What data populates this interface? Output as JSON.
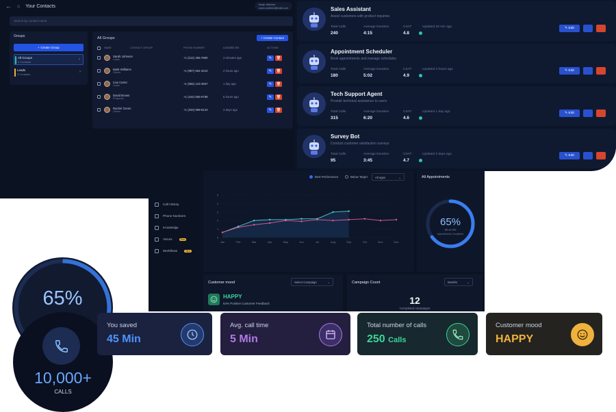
{
  "contacts": {
    "title": "Your Contacts",
    "account_name": "Noah Webber",
    "account_email": "noah.webber@mail.com",
    "search_placeholder": "Search by contact name",
    "groups_title": "Groups",
    "create_group": "Create Group",
    "groups": [
      {
        "name": "All Groups",
        "sub": "5 Contacts",
        "color": "#2fc4a9"
      },
      {
        "name": "Leads",
        "sub": "3 Contacts",
        "color": "#f0b23e"
      }
    ],
    "all_groups_title": "All Groups",
    "create_contact": "Create Contact",
    "columns": [
      "NAME",
      "CONTACT GROUP",
      "PHONE NUMBER",
      "LOGGED ON",
      "ACTIONS"
    ],
    "rows": [
      {
        "name": "Sarah Johnson",
        "group": "Leads",
        "phone": "+1 (212) 456-7890",
        "logged": "3 minutes ago"
      },
      {
        "name": "Mark Williams",
        "group": "Clients",
        "phone": "+1 (987) 654-3210",
        "logged": "2 hours ago"
      },
      {
        "name": "Lisa Carter",
        "group": "Leads",
        "phone": "+1 (555) 123-4567",
        "logged": "1 day ago"
      },
      {
        "name": "David Brown",
        "group": "Prospects",
        "phone": "+1 (444) 555-6789",
        "logged": "5 hours ago"
      },
      {
        "name": "Rachel Green",
        "group": "Clients",
        "phone": "+1 (333) 999-8123",
        "logged": "3 days ago"
      }
    ]
  },
  "agents": {
    "stat_labels": {
      "calls": "Total Calls",
      "duration": "Average Duration",
      "csat": "CSAT"
    },
    "edit_label": "Edit",
    "items": [
      {
        "name": "Sales Assistant",
        "desc": "Assist customers with product inquiries",
        "calls": "240",
        "duration": "4:15",
        "csat": "4.8",
        "updated": "Updated 20 min ago"
      },
      {
        "name": "Appointment Scheduler",
        "desc": "Book appointments and manage schedules",
        "calls": "180",
        "duration": "5:02",
        "csat": "4.9",
        "updated": "Updated 3 hours ago"
      },
      {
        "name": "Tech Support Agent",
        "desc": "Provide technical assistance to users",
        "calls": "315",
        "duration": "6:20",
        "csat": "4.6",
        "updated": "Updated 1 day ago"
      },
      {
        "name": "Survey Bot",
        "desc": "Conduct customer satisfaction surveys",
        "calls": "95",
        "duration": "3:45",
        "csat": "4.7",
        "updated": "Updated 3 days ago"
      }
    ]
  },
  "dashboard": {
    "nav": [
      {
        "label": "Call History",
        "badge": ""
      },
      {
        "label": "Phone Numbers",
        "badge": ""
      },
      {
        "label": "Knowledge",
        "badge": ""
      },
      {
        "label": "Voices",
        "badge": "New"
      },
      {
        "label": "Workflows",
        "badge": "New"
      }
    ],
    "legend_best": "Best Performance",
    "legend_below": "Below Target",
    "period_select": "All ages",
    "all_appointments": {
      "title": "All Appointments",
      "percent": "65%",
      "count": "65 of 100",
      "caption": "Appointments Completed",
      "fraction": 0.65
    },
    "mood": {
      "title": "Customer mood",
      "select": "Select Campaign",
      "label": "HAPPY",
      "desc": "64% Positive Customer Feedback"
    },
    "campaign": {
      "title": "Campaign Count",
      "select": "Months",
      "count": "12",
      "desc": "Completed campaigns"
    }
  },
  "chart_data": {
    "type": "line",
    "categories": [
      "Jan",
      "Feb",
      "Mar",
      "Apr",
      "May",
      "Jun",
      "Jul",
      "Aug",
      "Sep",
      "Oct",
      "Nov",
      "Dec"
    ],
    "series": [
      {
        "name": "Best Performance",
        "values": [
          0.6,
          1.3,
          2.0,
          2.1,
          2.1,
          2.2,
          2.2,
          3.0,
          3.1,
          null,
          null,
          null
        ]
      },
      {
        "name": "Below Target",
        "values": [
          0.6,
          1.2,
          1.5,
          1.7,
          2.0,
          1.9,
          2.1,
          2.0,
          2.1,
          2.2,
          2.0,
          2.1
        ]
      }
    ],
    "yticks": [
      "0",
      "1",
      "2",
      "3",
      "4",
      "5"
    ],
    "ylim": [
      0,
      5
    ],
    "grid": true
  },
  "stats": [
    {
      "label": "You saved",
      "value": "45 Min",
      "unit": "",
      "color": "#4f93ff",
      "icon": "clock-icon"
    },
    {
      "label": "Avg. call time",
      "value": "5 Min",
      "unit": "",
      "color": "#b07ae8",
      "icon": "calendar-icon"
    },
    {
      "label": "Total number of calls",
      "value": "250",
      "unit": "Calls",
      "color": "#3bd79b",
      "icon": "phone-icon"
    },
    {
      "label": "Customer mood",
      "value": "HAPPY",
      "unit": "",
      "color": "#f0b23e",
      "icon": "smiley-icon"
    }
  ],
  "circle_gauge": {
    "percent": "65%",
    "fraction": 0.65
  },
  "calls_badge": {
    "value": "10,000+",
    "label": "CALLS"
  }
}
